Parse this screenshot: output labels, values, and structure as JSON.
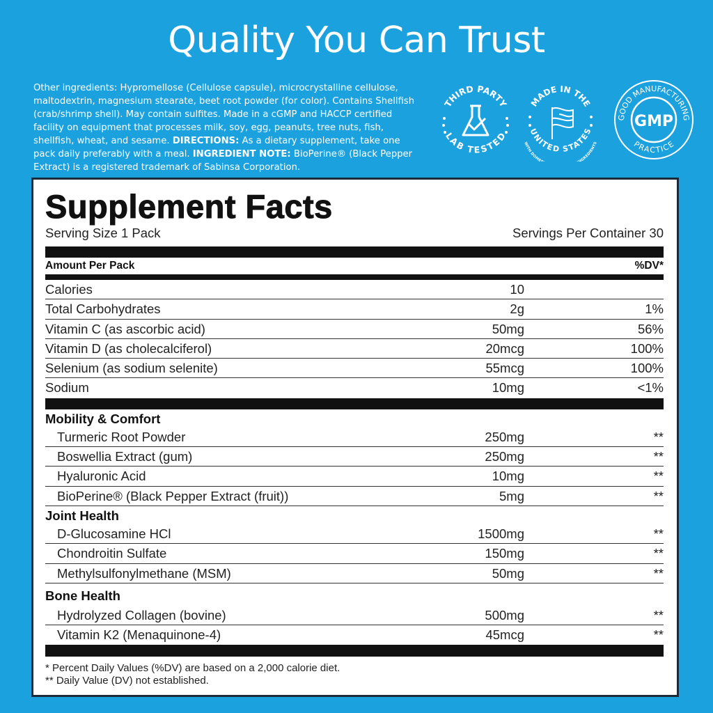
{
  "headline": "Quality You Can Trust",
  "other_ingredients": {
    "text1": "Other ingredients: Hypromellose (Cellulose capsule), microcrystalline cellulose, maltodextrin, magnesium stearate, beet root powder (for color). Contains Shellfish (crab/shrimp shell). May contain sulfites. Made in a cGMP and HACCP certified facility on equipment that processes milk, soy, egg, peanuts, tree nuts, fish, shellfish, wheat, and sesame. ",
    "directions_label": "DIRECTIONS:",
    "text2": " As a dietary supplement, take one pack daily preferably with a meal. ",
    "note_label": "INGREDIENT NOTE:",
    "text3": " BioPerine® (Black Pepper Extract) is a registered trademark of Sabinsa Corporation."
  },
  "badges": [
    {
      "icon": "flask-check-icon",
      "top": "THIRD PARTY",
      "bottom": "LAB TESTED"
    },
    {
      "icon": "us-flag-icon",
      "top": "MADE IN THE",
      "bottom": "UNITED STATES",
      "sub": "WITH DOMESTIC & IMPORTED INGREDIENTS"
    },
    {
      "icon": "gmp-icon",
      "top": "GOOD MANUFACTURING",
      "center": "GMP",
      "bottom": "PRACTICE"
    }
  ],
  "facts": {
    "title": "Supplement Facts",
    "serving_size": "Serving Size 1 Pack",
    "servings_per_container": "Servings Per Container 30",
    "amount_header": "Amount Per Pack",
    "dv_header": "%DV*",
    "nutrients": [
      {
        "name": "Calories",
        "amount": "10",
        "dv": ""
      },
      {
        "name": "Total Carbohydrates",
        "amount": "2g",
        "dv": "1%"
      },
      {
        "name": "Vitamin C (as ascorbic acid)",
        "amount": "50mg",
        "dv": "56%"
      },
      {
        "name": "Vitamin D (as cholecalciferol)",
        "amount": "20mcg",
        "dv": "100%"
      },
      {
        "name": "Selenium (as sodium selenite)",
        "amount": "55mcg",
        "dv": "100%"
      },
      {
        "name": "Sodium",
        "amount": "10mg",
        "dv": "<1%"
      }
    ],
    "groups": [
      {
        "title": "Mobility & Comfort",
        "items": [
          {
            "name": "Turmeric Root Powder",
            "amount": "250mg",
            "dv": "**"
          },
          {
            "name": "Boswellia Extract (gum)",
            "amount": "250mg",
            "dv": "**"
          },
          {
            "name": "Hyaluronic Acid",
            "amount": "10mg",
            "dv": "**"
          },
          {
            "name": "BioPerine® (Black Pepper Extract (fruit))",
            "amount": "5mg",
            "dv": "**"
          }
        ]
      },
      {
        "title": "Joint Health",
        "items": [
          {
            "name": "D-Glucosamine HCl",
            "amount": "1500mg",
            "dv": "**"
          },
          {
            "name": "Chondroitin Sulfate",
            "amount": "150mg",
            "dv": "**"
          },
          {
            "name": "Methylsulfonylmethane (MSM)",
            "amount": "50mg",
            "dv": "**"
          }
        ]
      },
      {
        "title": "Bone Health",
        "items": [
          {
            "name": "Hydrolyzed Collagen (bovine)",
            "amount": "500mg",
            "dv": "**"
          },
          {
            "name": "Vitamin K2 (Menaquinone-4)",
            "amount": "45mcg",
            "dv": "**"
          }
        ]
      }
    ],
    "footnote1": "* Percent Daily Values (%DV) are based on a 2,000 calorie diet.",
    "footnote2": "** Daily Value (DV) not established."
  },
  "colors": {
    "background": "#1ba1de",
    "text_on_blue": "#ffffff",
    "rules": "#111111"
  }
}
